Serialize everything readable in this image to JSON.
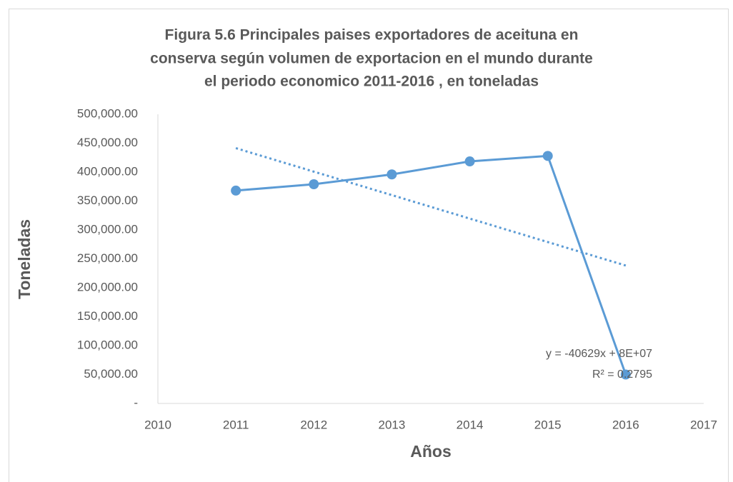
{
  "chart_data": {
    "type": "line",
    "title": [
      "Figura 5.6 Principales paises exportadores de aceituna en",
      "conserva según volumen de exportacion en el mundo durante",
      "el periodo economico 2011-2016 , en toneladas"
    ],
    "x_label": "Años",
    "y_label": "Toneladas",
    "x": [
      2011,
      2012,
      2013,
      2014,
      2015,
      2016
    ],
    "series": [
      {
        "color": "#5b9bd5",
        "values": [
          368000,
          379000,
          396000,
          418500,
          428000,
          50000
        ]
      }
    ],
    "trendline": "linear",
    "annotations": [
      "y = -40629x + 8E+07",
      "R² = 0.2795"
    ],
    "xlim": [
      2010,
      2017
    ],
    "xticks": [
      2010,
      2011,
      2012,
      2013,
      2014,
      2015,
      2016,
      2017
    ],
    "ylim": [
      0,
      500000
    ],
    "yticks": [
      {
        "value": 0,
        "label": "-"
      },
      {
        "value": 50000,
        "label": "50,000.00"
      },
      {
        "value": 100000,
        "label": "100,000.00"
      },
      {
        "value": 150000,
        "label": "150,000.00"
      },
      {
        "value": 200000,
        "label": "200,000.00"
      },
      {
        "value": 250000,
        "label": "250,000.00"
      },
      {
        "value": 300000,
        "label": "300,000.00"
      },
      {
        "value": 350000,
        "label": "350,000.00"
      },
      {
        "value": 400000,
        "label": "400,000.00"
      },
      {
        "value": 450000,
        "label": "450,000.00"
      },
      {
        "value": 500000,
        "label": "500,000.00"
      }
    ],
    "grid": false
  }
}
